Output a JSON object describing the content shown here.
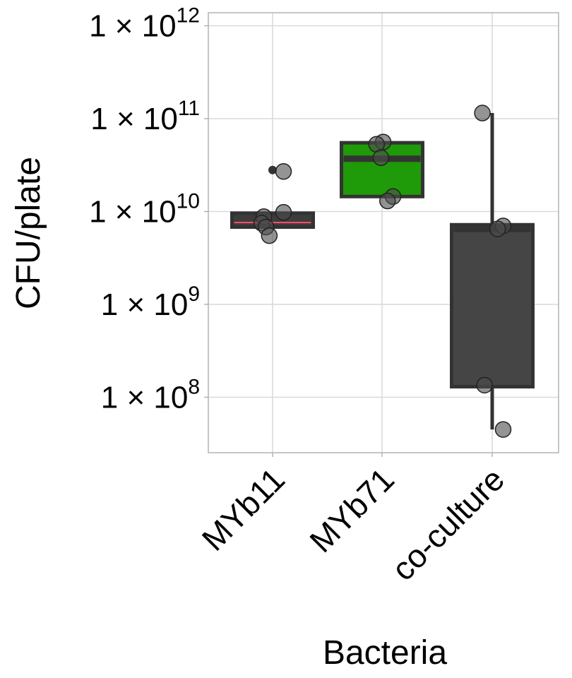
{
  "chart_data": {
    "type": "box",
    "xlabel": "Bacteria",
    "ylabel": "CFU/plate",
    "yscale": "log",
    "ylim": [
      22000000.0,
      2000000000000.0
    ],
    "yticks": [
      {
        "value": 100000000.0,
        "mantissa": "1",
        "times": "×",
        "base": "10",
        "exponent": "8"
      },
      {
        "value": 1000000000.0,
        "mantissa": "1",
        "times": "×",
        "base": "10",
        "exponent": "9"
      },
      {
        "value": 10000000000.0,
        "mantissa": "1",
        "times": "×",
        "base": "10",
        "exponent": "10"
      },
      {
        "value": 100000000000.0,
        "mantissa": "1",
        "times": "×",
        "base": "10",
        "exponent": "11"
      },
      {
        "value": 1000000000000.0,
        "mantissa": "1",
        "times": "×",
        "base": "10",
        "exponent": "12"
      }
    ],
    "categories": [
      "MYb11",
      "MYb71",
      "co-culture"
    ],
    "boxes": [
      {
        "category": "MYb11",
        "q1": 6800000000.0,
        "median": 7600000000.0,
        "q3": 9600000000.0,
        "whisker_low": 6800000000.0,
        "whisker_high": 9600000000.0,
        "outliers": [
          28000000000.0
        ],
        "fill": "#3c3c3c",
        "median_color": "#ff4d6d"
      },
      {
        "category": "MYb71",
        "q1": 14500000000.0,
        "median": 37000000000.0,
        "q3": 55000000000.0,
        "whisker_low": 14500000000.0,
        "whisker_high": 55000000000.0,
        "outliers": [],
        "fill": "#1f9a08",
        "median_color": "#333333"
      },
      {
        "category": "co-culture",
        "q1": 130000000.0,
        "median": 6500000000.0,
        "q3": 7200000000.0,
        "whisker_low": 45000000.0,
        "whisker_high": 115000000000.0,
        "outliers": [],
        "fill": "#454545",
        "median_color": "#333333"
      }
    ],
    "points": [
      {
        "category": "MYb11",
        "y": 27000000000.0,
        "jitter": 0.1
      },
      {
        "category": "MYb11",
        "y": 9800000000.0,
        "jitter": 0.1
      },
      {
        "category": "MYb11",
        "y": 8800000000.0,
        "jitter": -0.08
      },
      {
        "category": "MYb11",
        "y": 7500000000.0,
        "jitter": -0.1
      },
      {
        "category": "MYb11",
        "y": 6800000000.0,
        "jitter": -0.06
      },
      {
        "category": "MYb11",
        "y": 5500000000.0,
        "jitter": -0.03
      },
      {
        "category": "MYb71",
        "y": 56000000000.0,
        "jitter": 0.01
      },
      {
        "category": "MYb71",
        "y": 53000000000.0,
        "jitter": -0.05
      },
      {
        "category": "MYb71",
        "y": 38000000000.0,
        "jitter": -0.01
      },
      {
        "category": "MYb71",
        "y": 14500000000.0,
        "jitter": 0.1
      },
      {
        "category": "MYb71",
        "y": 13000000000.0,
        "jitter": 0.05
      },
      {
        "category": "co-culture",
        "y": 115000000000.0,
        "jitter": -0.09
      },
      {
        "category": "co-culture",
        "y": 7000000000.0,
        "jitter": 0.1
      },
      {
        "category": "co-culture",
        "y": 6500000000.0,
        "jitter": 0.05
      },
      {
        "category": "co-culture",
        "y": 135000000.0,
        "jitter": -0.07
      },
      {
        "category": "co-culture",
        "y": 45000000.0,
        "jitter": 0.1
      }
    ],
    "point_color": "#4d4d4d",
    "grid": true,
    "legend": "none"
  }
}
